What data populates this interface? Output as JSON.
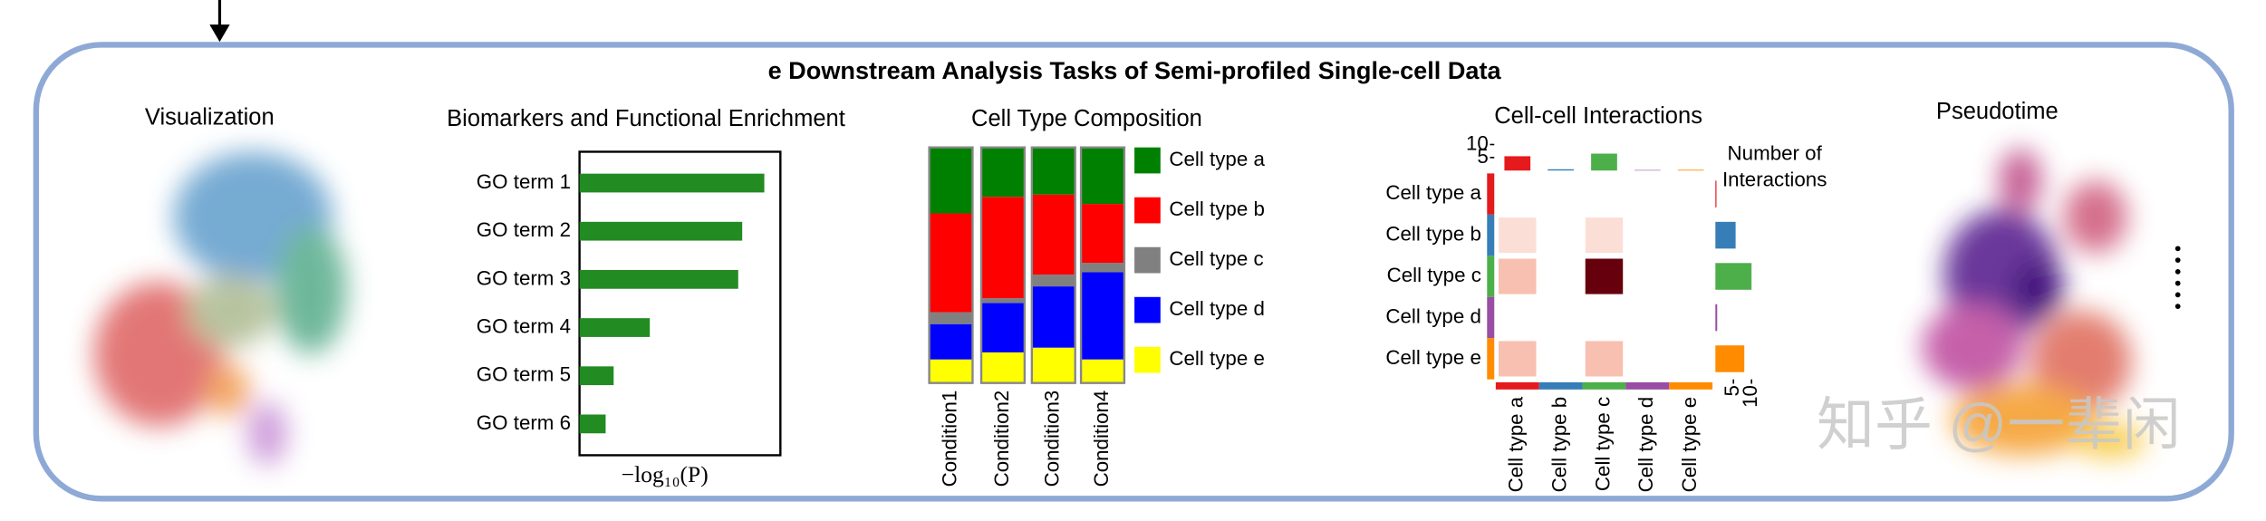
{
  "title": "e Downstream Analysis Tasks of Semi-profiled Single-cell Data",
  "panels": {
    "visualization": "Visualization",
    "pseudotime": "Pseudotime"
  },
  "watermark": "知乎 @一辈闲",
  "chart_data": [
    {
      "type": "hbar",
      "title": "Biomarkers and Functional Enrichment",
      "categories": [
        "GO term 1",
        "GO term 2",
        "GO term 3",
        "GO term 4",
        "GO term 5",
        "GO term 6"
      ],
      "values": [
        9.2,
        8.1,
        7.9,
        3.5,
        1.7,
        1.3
      ],
      "xlim": [
        0,
        10
      ],
      "xlabel": "−log₁₀(P)",
      "color": "#228b22"
    },
    {
      "type": "stacked",
      "title": "Cell Type Composition",
      "categories": [
        "Condition1",
        "Condition2",
        "Condition3",
        "Condition4"
      ],
      "ylim": [
        0,
        100
      ],
      "series": [
        {
          "name": "Cell type a",
          "color": "#008000",
          "values": [
            28,
            21,
            20,
            24
          ]
        },
        {
          "name": "Cell type b",
          "color": "#ff0000",
          "values": [
            42,
            43,
            34,
            25
          ]
        },
        {
          "name": "Cell type c",
          "color": "#808080",
          "values": [
            5,
            2,
            5,
            4
          ]
        },
        {
          "name": "Cell type d",
          "color": "#0000ff",
          "values": [
            15,
            21,
            26,
            37
          ]
        },
        {
          "name": "Cell type e",
          "color": "#ffff00",
          "values": [
            10,
            13,
            15,
            10
          ]
        }
      ]
    },
    {
      "type": "heatmap",
      "title": "Cell-cell Interactions",
      "rows": [
        "Cell type a",
        "Cell type b",
        "Cell type c",
        "Cell type d",
        "Cell type e"
      ],
      "columns": [
        "Cell type a",
        "Cell type b",
        "Cell type c",
        "Cell type d",
        "Cell type e"
      ],
      "values": [
        [
          0,
          0,
          0,
          0,
          0
        ],
        [
          1,
          0,
          1,
          0,
          0
        ],
        [
          2,
          0,
          6,
          0,
          0
        ],
        [
          0,
          0,
          0,
          0,
          0
        ],
        [
          2,
          0,
          2,
          0,
          0
        ]
      ],
      "zlim": [
        0,
        6
      ],
      "colorscale": [
        "#ffffff",
        "#f4a088",
        "#67000d"
      ],
      "group_colors": [
        "#e41a1c",
        "#377eb8",
        "#4daf4a",
        "#984ea3",
        "#ff8c00"
      ],
      "top_values": [
        5.5,
        0.5,
        6.5,
        0.2,
        0.3
      ],
      "top_lim": [
        0,
        10
      ],
      "top_ticks": [
        10,
        5
      ],
      "right_values": [
        0.3,
        5.6,
        10,
        0.5,
        8
      ],
      "right_lim": [
        0,
        10
      ],
      "right_ticks": [
        5,
        10
      ],
      "legend_title": [
        "Number of",
        "Interactions"
      ]
    }
  ]
}
